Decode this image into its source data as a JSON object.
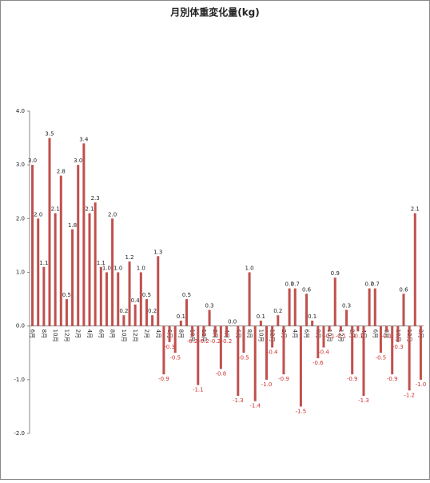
{
  "chart_data": {
    "type": "bar",
    "title": "月別体重変化量(kg)",
    "categories": [
      "6月",
      null,
      "8月",
      null,
      "10月",
      null,
      "12月",
      null,
      "2月",
      null,
      "4月",
      null,
      "6月",
      null,
      "8月",
      null,
      "10月",
      null,
      "12月",
      null,
      "2月",
      null,
      "4月",
      null,
      "6月",
      null,
      "8月",
      null,
      "10月",
      null,
      "12月",
      null,
      "2月",
      null,
      "4月",
      null,
      "6月",
      null,
      "8月",
      null,
      "10月",
      null,
      "12月",
      null,
      "2月",
      null,
      "4月",
      null,
      "6月",
      null,
      "8月",
      null,
      "10月",
      null,
      "12月",
      null,
      "2月",
      null,
      "4月",
      null,
      "6月",
      null,
      "8月",
      null,
      "10月",
      null,
      "12月",
      null,
      "2月"
    ],
    "values": [
      3.0,
      2.0,
      1.1,
      3.5,
      2.1,
      2.8,
      0.5,
      1.8,
      3.0,
      3.4,
      2.1,
      2.3,
      1.1,
      1.0,
      2.0,
      1.0,
      0.2,
      1.2,
      0.4,
      1.0,
      0.5,
      0.2,
      1.3,
      -0.9,
      -0.3,
      -0.5,
      0.1,
      0.5,
      -0.2,
      -1.1,
      -0.2,
      0.3,
      -0.2,
      -0.8,
      -0.2,
      0.0,
      -1.3,
      -0.5,
      1.0,
      -1.4,
      0.1,
      -1.0,
      -0.4,
      0.2,
      -0.9,
      0.7,
      0.7,
      -1.5,
      0.6,
      0.1,
      -0.6,
      -0.4,
      -0.1,
      0.9,
      -0.1,
      0.3,
      -0.9,
      -0.1,
      -1.3,
      0.7,
      0.7,
      -0.5,
      -0.1,
      -0.9,
      -0.3,
      0.6,
      -1.2,
      2.1,
      -1.0
    ],
    "value_labels": [
      "3.0",
      "2.0",
      "1.1",
      "3.5",
      "2.1",
      "2.8",
      "0.5",
      "1.8",
      "3.0",
      "3.4",
      "2.1",
      "2.3",
      "1.1",
      "1.0",
      "2.0",
      "1.0",
      "0.2",
      "1.2",
      "0.4",
      "1.0",
      "0.5",
      "0.2",
      "1.3",
      "-0.9",
      "-0.3",
      "-0.5",
      "0.1",
      "0.5",
      "-0.2",
      "-1.1",
      "-0.2",
      "0.3",
      "-0.2",
      "-0.8",
      "-0.2",
      "0.0",
      "-1.3",
      "-0.5",
      "1.0",
      "-1.4",
      "0.1",
      "-1.0",
      "-0.4",
      "0.2",
      "-0.9",
      "0.7",
      "0.7",
      "-1.5",
      "0.6",
      "0.1",
      "-0.6",
      "-0.4",
      "-0.1",
      "0.9",
      "-0.1",
      "0.3",
      "-0.9",
      "-0.1",
      "-1.3",
      "0.7",
      "0.7",
      "-0.5",
      "-0.1",
      "-0.9",
      "-0.3",
      "0.6",
      "-1.2",
      "2.1",
      "-1.0"
    ],
    "color": "#c0504d",
    "negative_label_color": "#d03030",
    "ylim": [
      -2,
      4
    ],
    "yticks": [
      {
        "value": -2,
        "label": "-2.0"
      },
      {
        "value": -1,
        "label": "-1.0"
      },
      {
        "value": 0,
        "label": "0.0"
      },
      {
        "value": 1,
        "label": "1.0"
      },
      {
        "value": 2,
        "label": "2.0"
      },
      {
        "value": 3,
        "label": "3.0"
      },
      {
        "value": 4,
        "label": "4.0"
      }
    ]
  }
}
